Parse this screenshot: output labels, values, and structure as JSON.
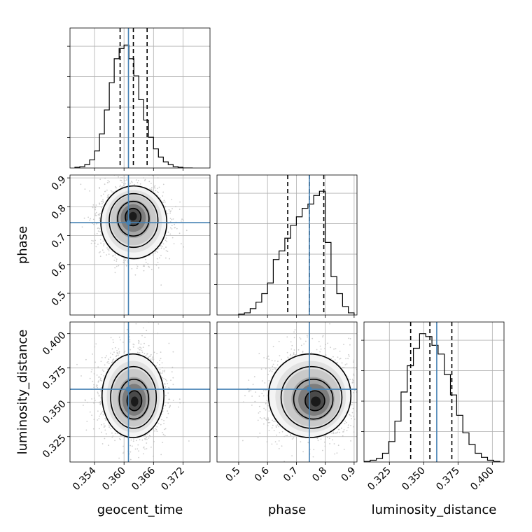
{
  "chart_data": {
    "type": "corner",
    "parameters": [
      {
        "name": "geocent_time",
        "label": "geocent_time",
        "range": [
          0.349,
          0.3775
        ],
        "ticks": [
          0.354,
          0.36,
          0.366,
          0.372
        ],
        "tick_labels": [
          "0.354",
          "0.360",
          "0.366",
          "0.372"
        ],
        "truth": 0.3609,
        "quantiles": [
          0.3592,
          0.3619,
          0.3647
        ],
        "hist": {
          "edges": [
            0.35,
            0.351,
            0.352,
            0.353,
            0.354,
            0.355,
            0.356,
            0.357,
            0.358,
            0.359,
            0.36,
            0.361,
            0.362,
            0.363,
            0.364,
            0.365,
            0.366,
            0.367,
            0.368,
            0.369,
            0.37,
            0.371,
            0.372,
            0.373,
            0.374
          ],
          "counts": [
            1,
            2,
            5,
            12,
            25,
            50,
            85,
            125,
            160,
            175,
            180,
            160,
            135,
            100,
            70,
            45,
            28,
            16,
            9,
            5,
            2,
            1,
            0,
            0
          ],
          "ymax": 205
        }
      },
      {
        "name": "phase",
        "label": "phase",
        "range": [
          0.425,
          0.91
        ],
        "ticks": [
          0.5,
          0.6,
          0.7,
          0.8,
          0.9
        ],
        "tick_labels": [
          "0.5",
          "0.6",
          "0.7",
          "0.8",
          "0.9"
        ],
        "truth": 0.745,
        "quantiles": [
          0.67,
          0.745,
          0.795
        ],
        "hist": {
          "edges": [
            0.5,
            0.52,
            0.54,
            0.56,
            0.58,
            0.6,
            0.62,
            0.64,
            0.66,
            0.68,
            0.7,
            0.72,
            0.74,
            0.76,
            0.78,
            0.8,
            0.82,
            0.84,
            0.86,
            0.88,
            0.9
          ],
          "counts": [
            2,
            5,
            15,
            30,
            50,
            75,
            130,
            150,
            180,
            210,
            230,
            250,
            260,
            280,
            290,
            170,
            90,
            50,
            20,
            5
          ],
          "ymax": 328
        }
      },
      {
        "name": "luminosity_distance",
        "label": "luminosity_distance",
        "range": [
          0.3065,
          0.4085
        ],
        "ticks": [
          0.325,
          0.35,
          0.375,
          0.4
        ],
        "tick_labels": [
          "0.325",
          "0.350",
          "0.375",
          "0.400"
        ],
        "truth": 0.3595,
        "quantiles": [
          0.3405,
          0.3545,
          0.3705
        ],
        "hist": {
          "edges": [
            0.3065,
            0.311,
            0.3155,
            0.32,
            0.3245,
            0.329,
            0.3335,
            0.338,
            0.3425,
            0.347,
            0.3515,
            0.356,
            0.3605,
            0.365,
            0.3695,
            0.374,
            0.3785,
            0.383,
            0.3875,
            0.392,
            0.3965,
            0.401,
            0.4055
          ],
          "counts": [
            1,
            3,
            6,
            15,
            35,
            70,
            120,
            165,
            195,
            220,
            215,
            200,
            185,
            150,
            115,
            80,
            50,
            30,
            15,
            8,
            3,
            1
          ],
          "ymax": 240
        }
      }
    ],
    "pairs": [
      {
        "x": "geocent_time",
        "y": "phase",
        "center": [
          0.362,
          0.745
        ],
        "sigma": [
          0.0032,
          0.06
        ],
        "mode": [
          0.3618,
          0.77
        ]
      },
      {
        "x": "geocent_time",
        "y": "luminosity_distance",
        "center": [
          0.3618,
          0.355
        ],
        "sigma": [
          0.003,
          0.0145
        ],
        "mode": [
          0.3622,
          0.35
        ]
      },
      {
        "x": "phase",
        "y": "luminosity_distance",
        "center": [
          0.745,
          0.355
        ],
        "sigma": [
          0.068,
          0.0145
        ],
        "mode": [
          0.77,
          0.35
        ]
      }
    ],
    "colors": {
      "truth": "#4682b4",
      "hist": "#000000",
      "quantile": "#000000",
      "grid": "#b0b0b0",
      "points": "#b8b8b8",
      "contour": "#000000"
    },
    "grid": true
  }
}
